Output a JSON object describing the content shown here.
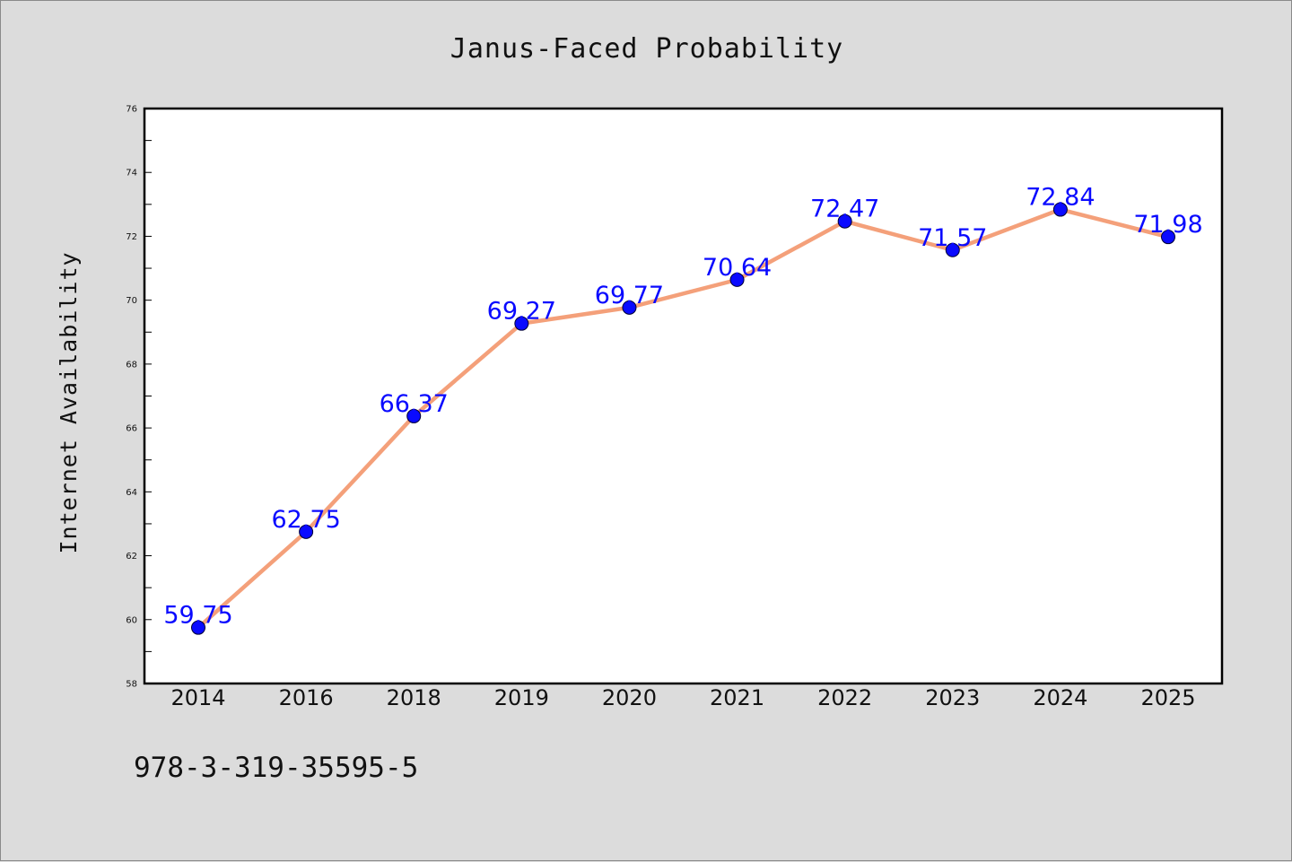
{
  "chart_data": {
    "type": "line",
    "title": "Janus-Faced Probability",
    "ylabel": "Internet Availability",
    "xlabel": "",
    "categories": [
      "2014",
      "2016",
      "2018",
      "2019",
      "2020",
      "2021",
      "2022",
      "2023",
      "2024",
      "2025"
    ],
    "series": [
      {
        "values": [
          59.75,
          62.75,
          66.37,
          69.27,
          69.77,
          70.64,
          72.47,
          71.57,
          72.84,
          71.98
        ],
        "labels": [
          "59.75",
          "62.75",
          "66.37",
          "69.27",
          "69.77",
          "70.64",
          "72.47",
          "71.57",
          "72.84",
          "71.98"
        ],
        "line_color": "#f4a07a",
        "marker_color": "#0a0aff"
      }
    ],
    "ylim": [
      58,
      76
    ],
    "yticks": [
      "58",
      "60",
      "62",
      "64",
      "66",
      "68",
      "70",
      "72",
      "74",
      "76"
    ],
    "grid": false,
    "legend": "none"
  },
  "footer": {
    "identifier": "978-3-319-35595-5"
  },
  "colors": {
    "background": "#dcdcdc",
    "plot_area": "#ffffff",
    "axis": "#000000",
    "label_text": "#0a0aff"
  }
}
